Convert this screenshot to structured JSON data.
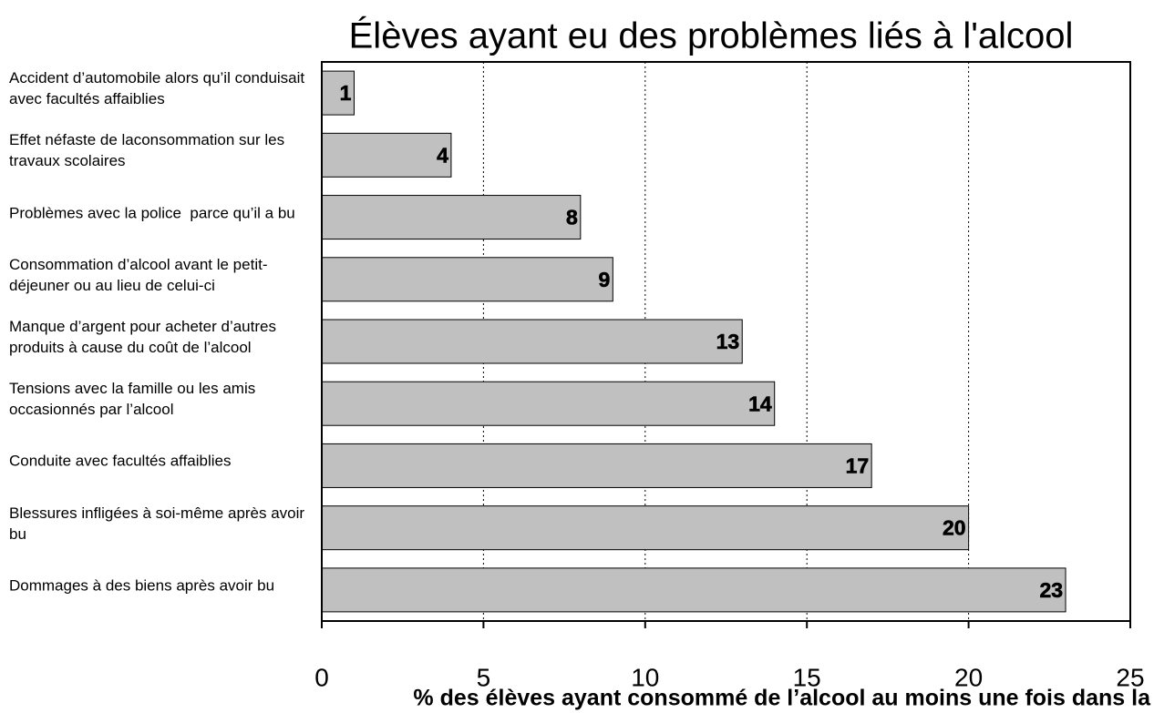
{
  "chart_data": {
    "type": "bar",
    "orientation": "horizontal",
    "title": "Élèves ayant eu des problèmes liés à l'alcool",
    "xlabel": "% des élèves ayant consommé de l’alcool au moins une fois dans la",
    "categories": [
      "Accident d’automobile alors qu’il conduisait avec facultés affaiblies",
      "Effet néfaste de laconsommation sur les travaux scolaires",
      "Problèmes avec la police  parce qu’il a bu",
      "Consommation d’alcool avant le petit-déjeuner ou au lieu de celui-ci",
      "Manque d’argent pour acheter d’autres produits à cause du coût de l’alcool",
      "Tensions avec la famille ou les amis occasionnés par l’alcool",
      "Conduite avec facultés affaiblies",
      "Blessures infligées à soi-même après avoir bu",
      "Dommages à des biens après avoir bu"
    ],
    "values": [
      1,
      4,
      8,
      9,
      13,
      14,
      17,
      20,
      23
    ],
    "color": "#c0c0c0",
    "xlim": [
      0,
      25
    ],
    "xticks": [
      0,
      5,
      10,
      15,
      20,
      25
    ],
    "grid": true
  }
}
